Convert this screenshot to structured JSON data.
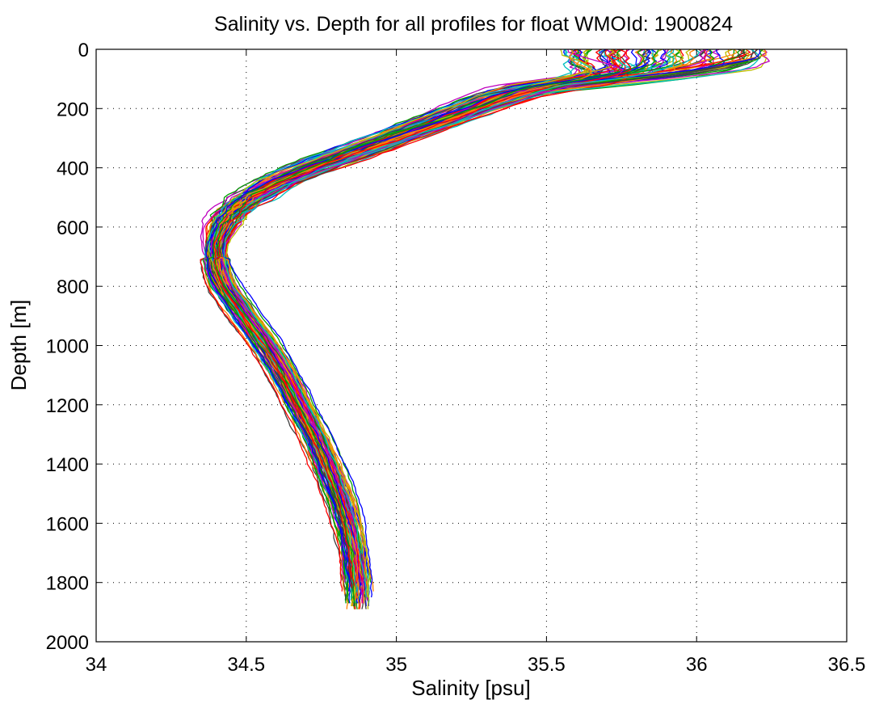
{
  "chart_data": {
    "type": "line",
    "title": "Salinity vs. Depth for all profiles for float WMOId: 1900824",
    "xlabel": "Salinity [psu]",
    "ylabel": "Depth [m]",
    "xlim": [
      34,
      36.5
    ],
    "ylim": [
      0,
      2000
    ],
    "y_reversed": true,
    "grid": true,
    "legend": "none",
    "x_ticks": [
      "34",
      "34.5",
      "35",
      "35.5",
      "36",
      "36.5"
    ],
    "y_ticks": [
      "0",
      "200",
      "400",
      "600",
      "800",
      "1000",
      "1200",
      "1400",
      "1600",
      "1800",
      "2000"
    ],
    "series_colors": [
      "#0000ff",
      "#00a000",
      "#ff0000",
      "#00bfbf",
      "#bf00bf",
      "#bfbf00",
      "#404040",
      "#ff8000"
    ],
    "profile_count": 100,
    "mean_profile": {
      "depth": [
        0,
        20,
        40,
        60,
        80,
        100,
        120,
        150,
        200,
        250,
        300,
        350,
        400,
        450,
        500,
        550,
        600,
        650,
        700,
        750,
        800,
        900,
        1000,
        1100,
        1200,
        1300,
        1400,
        1500,
        1600,
        1700,
        1800,
        1850
      ],
      "salinity": [
        35.9,
        35.88,
        35.86,
        35.8,
        35.7,
        35.58,
        35.48,
        35.38,
        35.25,
        35.12,
        34.98,
        34.85,
        34.72,
        34.6,
        34.51,
        34.45,
        34.42,
        34.4,
        34.4,
        34.41,
        34.43,
        34.5,
        34.57,
        34.63,
        34.68,
        34.73,
        34.77,
        34.81,
        34.84,
        34.86,
        34.87,
        34.87
      ]
    }
  }
}
